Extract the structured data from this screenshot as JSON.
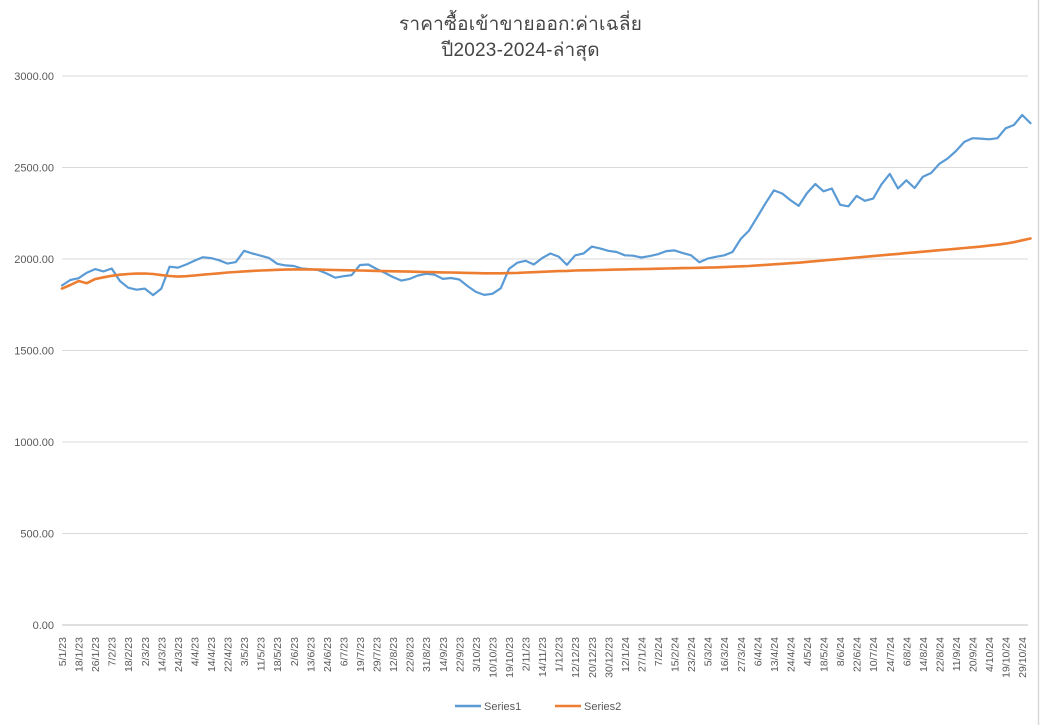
{
  "title": {
    "line1": "ราคาซื้อเข้าขายออก:ค่าเฉลี่ย",
    "line2": "ปี2023-2024-ล่าสุด"
  },
  "colors": {
    "series1": "#5B9BD5",
    "series2": "#ED7D31",
    "gridline": "#D9D9D9",
    "axis_line": "#BFBFBF",
    "tick_text": "#595959",
    "title_text": "#464646"
  },
  "chart_data": {
    "type": "line",
    "title": "ราคาซื้อเข้าขายออก:ค่าเฉลี่ย ปี2023-2024-ล่าสุด",
    "xlabel": "",
    "ylabel": "",
    "ylim": [
      0,
      3000
    ],
    "grid": "horizontal",
    "legend_position": "bottom-center",
    "y_tick_labels": [
      "0.00",
      "500.00",
      "1000.00",
      "1500.00",
      "2000.00",
      "2500.00",
      "3000.00"
    ],
    "y_tick_values": [
      0,
      500,
      1000,
      1500,
      2000,
      2500,
      3000
    ],
    "x_tick_labels": [
      "5/1/23",
      "18/1/23",
      "26/1/23",
      "7/2/23",
      "18/2/23",
      "2/3/23",
      "14/3/23",
      "24/3/23",
      "4/4/23",
      "14/4/23",
      "22/4/23",
      "3/5/23",
      "11/5/23",
      "18/5/23",
      "2/6/23",
      "13/6/23",
      "24/6/23",
      "6/7/23",
      "19/7/23",
      "29/7/23",
      "12/8/23",
      "22/8/23",
      "31/8/23",
      "14/9/23",
      "22/9/23",
      "3/10/23",
      "10/10/23",
      "19/10/23",
      "2/11/23",
      "14/11/23",
      "1/12/23",
      "12/12/23",
      "20/12/23",
      "30/12/23",
      "12/1/24",
      "27/1/24",
      "7/2/24",
      "15/2/24",
      "23/2/24",
      "5/3/24",
      "16/3/24",
      "27/3/24",
      "6/4/24",
      "13/4/24",
      "24/4/24",
      "4/5/24",
      "18/5/24",
      "8/6/24",
      "22/6/24",
      "10/7/24",
      "24/7/24",
      "6/8/24",
      "14/8/24",
      "22/8/24",
      "11/9/24",
      "20/9/24",
      "4/10/24",
      "19/10/24",
      "29/10/24"
    ],
    "points_per_label_interval": 2,
    "series": [
      {
        "name": "Series1",
        "color": "#5B9BD5",
        "width": 2.2,
        "values": [
          1855,
          1885,
          1895,
          1925,
          1945,
          1932,
          1948,
          1880,
          1843,
          1832,
          1838,
          1803,
          1838,
          1958,
          1953,
          1970,
          1990,
          2010,
          2005,
          1993,
          1975,
          1983,
          2045,
          2030,
          2018,
          2006,
          1974,
          1965,
          1962,
          1948,
          1944,
          1939,
          1920,
          1898,
          1906,
          1912,
          1967,
          1970,
          1946,
          1924,
          1901,
          1882,
          1891,
          1910,
          1919,
          1914,
          1891,
          1896,
          1888,
          1852,
          1820,
          1804,
          1810,
          1840,
          1946,
          1980,
          1990,
          1970,
          2005,
          2030,
          2013,
          1968,
          2020,
          2030,
          2068,
          2058,
          2045,
          2038,
          2020,
          2018,
          2008,
          2016,
          2026,
          2043,
          2047,
          2032,
          2020,
          1982,
          2002,
          2012,
          2020,
          2038,
          2110,
          2155,
          2230,
          2305,
          2375,
          2358,
          2322,
          2290,
          2360,
          2410,
          2370,
          2385,
          2296,
          2288,
          2345,
          2318,
          2330,
          2408,
          2465,
          2385,
          2430,
          2388,
          2450,
          2470,
          2520,
          2550,
          2590,
          2640,
          2660,
          2658,
          2654,
          2660,
          2714,
          2732,
          2787,
          2742
        ]
      },
      {
        "name": "Series2",
        "color": "#ED7D31",
        "width": 2.6,
        "values": [
          1838,
          1858,
          1880,
          1868,
          1890,
          1900,
          1908,
          1914,
          1918,
          1920,
          1921,
          1918,
          1912,
          1907,
          1904,
          1906,
          1910,
          1914,
          1918,
          1922,
          1926,
          1929,
          1932,
          1935,
          1937,
          1939,
          1941,
          1942,
          1943,
          1943,
          1943,
          1942,
          1941,
          1940,
          1939,
          1938,
          1937,
          1936,
          1935,
          1934,
          1933,
          1932,
          1931,
          1930,
          1929,
          1928,
          1927,
          1926,
          1925,
          1924,
          1923,
          1922,
          1922,
          1922,
          1923,
          1924,
          1926,
          1928,
          1930,
          1932,
          1934,
          1935,
          1937,
          1938,
          1939,
          1940,
          1941,
          1942,
          1943,
          1944,
          1945,
          1946,
          1947,
          1948,
          1949,
          1950,
          1951,
          1952,
          1953,
          1954,
          1956,
          1958,
          1960,
          1962,
          1965,
          1968,
          1971,
          1974,
          1977,
          1980,
          1984,
          1988,
          1992,
          1996,
          2000,
          2004,
          2008,
          2012,
          2016,
          2020,
          2024,
          2028,
          2032,
          2036,
          2040,
          2044,
          2048,
          2052,
          2056,
          2060,
          2064,
          2068,
          2073,
          2078,
          2084,
          2092,
          2102,
          2112
        ]
      }
    ]
  },
  "legend": {
    "items": [
      {
        "label": "Series1",
        "color": "#5B9BD5"
      },
      {
        "label": "Series2",
        "color": "#ED7D31"
      }
    ]
  }
}
